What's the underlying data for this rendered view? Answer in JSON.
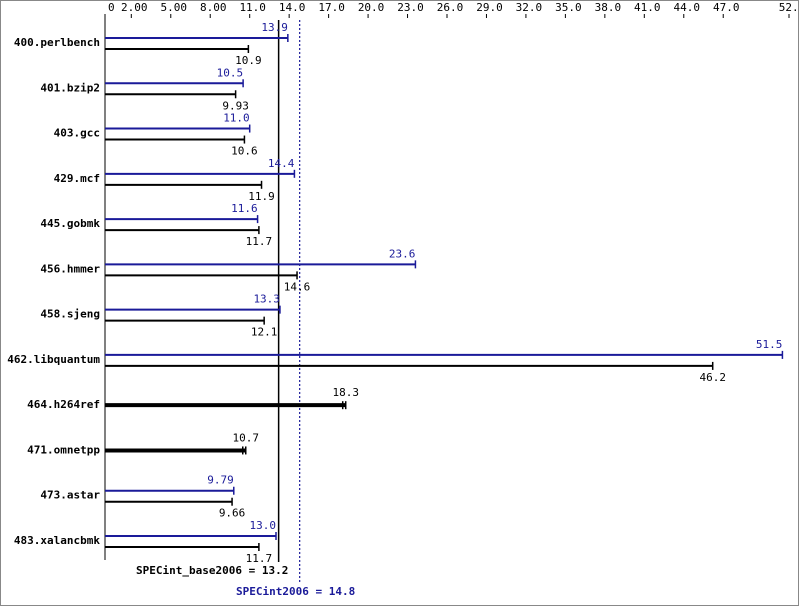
{
  "chart_data": {
    "type": "bar",
    "orientation": "horizontal",
    "categories": [
      "400.perlbench",
      "401.bzip2",
      "403.gcc",
      "429.mcf",
      "445.gobmk",
      "456.hmmer",
      "458.sjeng",
      "462.libquantum",
      "464.h264ref",
      "471.omnetpp",
      "473.astar",
      "483.xalancbmk"
    ],
    "series": [
      {
        "color": "#1a1a99",
        "values": [
          13.9,
          10.5,
          11.0,
          14.4,
          11.6,
          23.6,
          13.3,
          51.5,
          null,
          null,
          9.79,
          13.0
        ],
        "value_labels": [
          "13.9",
          "10.5",
          "11.0",
          "14.4",
          "11.6",
          "23.6",
          "13.3",
          "51.5",
          null,
          null,
          "9.79",
          "13.0"
        ]
      },
      {
        "color": "#000000",
        "values": [
          10.9,
          9.93,
          10.6,
          11.9,
          11.7,
          14.6,
          12.1,
          46.2,
          18.3,
          10.7,
          9.66,
          11.7
        ]
      }
    ],
    "xlim": [
      0,
      52
    ],
    "xticks": [
      0,
      {
        "value": 2,
        "label": "2.00"
      },
      {
        "value": 5,
        "label": "5.00"
      },
      {
        "value": 8,
        "label": "8.00"
      },
      {
        "value": 11,
        "label": "11.0"
      },
      {
        "value": 14,
        "label": "14.0"
      },
      {
        "value": 17,
        "label": "17.0"
      },
      {
        "value": 20,
        "label": "20.0"
      },
      {
        "value": 23,
        "label": "23.0"
      },
      {
        "value": 26,
        "label": "26.0"
      },
      {
        "value": 29,
        "label": "29.0"
      },
      {
        "value": 32,
        "label": "32.0"
      },
      {
        "value": 35,
        "label": "35.0"
      },
      {
        "value": 38,
        "label": "38.0"
      },
      {
        "value": 41,
        "label": "41.0"
      },
      {
        "value": 44,
        "label": "44.0"
      },
      {
        "value": 47,
        "label": "47.0"
      },
      {
        "value": 52,
        "label": "52.0"
      }
    ],
    "reference_lines": [
      {
        "label": "SPECint_base2006 = 13.2",
        "value": 13.2,
        "color": "#000000",
        "style": "solid"
      },
      {
        "label": "SPECint2006 = 14.8",
        "value": 14.8,
        "color": "#1a1a99",
        "style": "dotted"
      }
    ]
  }
}
